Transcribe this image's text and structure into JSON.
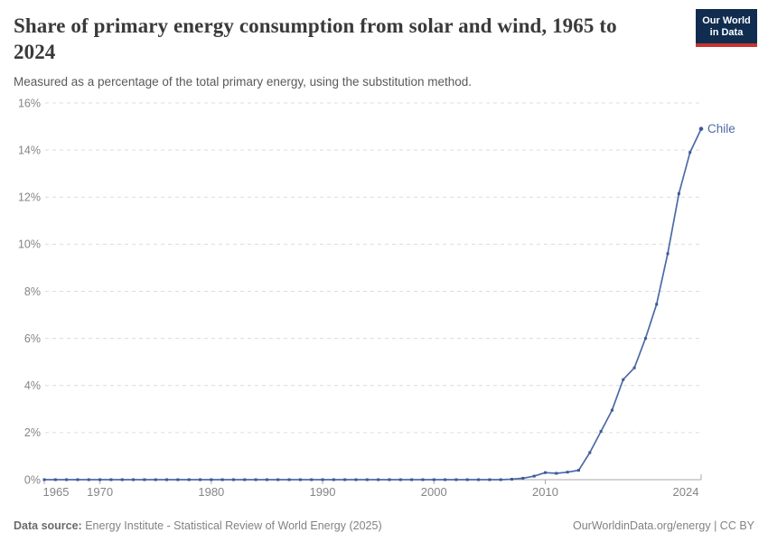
{
  "header": {
    "title": "Share of primary energy consumption from solar and wind, 1965 to 2024",
    "title_line1": "Share of primary energy consumption from solar and wind, 1965 to",
    "title_line2": "2024",
    "subtitle": "Measured as a percentage of the total primary energy, using the substitution method.",
    "logo": {
      "line1": "Our World",
      "line2": "in Data",
      "bg_color": "#102d50",
      "accent_color": "#c7342f"
    }
  },
  "footer": {
    "source_label": "Data source:",
    "source_text": "Energy Institute - Statistical Review of World Energy (2025)",
    "credit_text": "OurWorldinData.org/energy | CC BY"
  },
  "chart_data": {
    "type": "line",
    "title": "Share of primary energy consumption from solar and wind, 1965 to 2024",
    "entity": "Chile",
    "end_label": "Chile",
    "unit": "%",
    "grid": "horizontal-dashed",
    "legend": "end-of-line-label",
    "xlim": [
      1965,
      2024
    ],
    "ylim": [
      0,
      16
    ],
    "x": [
      1965,
      1966,
      1967,
      1968,
      1969,
      1970,
      1971,
      1972,
      1973,
      1974,
      1975,
      1976,
      1977,
      1978,
      1979,
      1980,
      1981,
      1982,
      1983,
      1984,
      1985,
      1986,
      1987,
      1988,
      1989,
      1990,
      1991,
      1992,
      1993,
      1994,
      1995,
      1996,
      1997,
      1998,
      1999,
      2000,
      2001,
      2002,
      2003,
      2004,
      2005,
      2006,
      2007,
      2008,
      2009,
      2010,
      2011,
      2012,
      2013,
      2014,
      2015,
      2016,
      2017,
      2018,
      2019,
      2020,
      2021,
      2022,
      2023,
      2024
    ],
    "series": [
      {
        "name": "Chile",
        "values": [
          0,
          0,
          0,
          0,
          0,
          0,
          0,
          0,
          0,
          0,
          0,
          0,
          0,
          0,
          0,
          0,
          0,
          0,
          0,
          0,
          0,
          0,
          0,
          0,
          0,
          0,
          0,
          0,
          0,
          0,
          0,
          0,
          0,
          0,
          0,
          0,
          0,
          0,
          0,
          0,
          0,
          0,
          0.02,
          0.06,
          0.15,
          0.3,
          0.27,
          0.32,
          0.4,
          1.15,
          2.05,
          2.95,
          4.25,
          4.75,
          6.0,
          7.45,
          9.6,
          12.15,
          13.9,
          14.9
        ]
      }
    ],
    "xticks": [
      {
        "value": 1965,
        "label": "1965"
      },
      {
        "value": 1970,
        "label": "1970"
      },
      {
        "value": 1980,
        "label": "1980"
      },
      {
        "value": 1990,
        "label": "1990"
      },
      {
        "value": 2000,
        "label": "2000"
      },
      {
        "value": 2010,
        "label": "2010"
      },
      {
        "value": 2024,
        "label": "2024"
      }
    ],
    "yticks": [
      {
        "value": 0,
        "label": "0%"
      },
      {
        "value": 2,
        "label": "2%"
      },
      {
        "value": 4,
        "label": "4%"
      },
      {
        "value": 6,
        "label": "6%"
      },
      {
        "value": 8,
        "label": "8%"
      },
      {
        "value": 10,
        "label": "10%"
      },
      {
        "value": 12,
        "label": "12%"
      },
      {
        "value": 14,
        "label": "14%"
      },
      {
        "value": 16,
        "label": "16%"
      }
    ],
    "colors": {
      "line": "#4d6aa5",
      "marker": "#3c5a96",
      "end_label": "#4d6aa5",
      "grid": "#dcdcdc",
      "axis": "#a8a8a8",
      "tick_text": "#858585"
    }
  }
}
